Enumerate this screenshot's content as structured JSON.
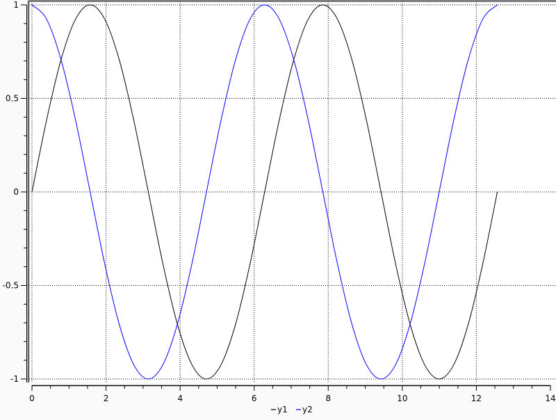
{
  "chart_data": {
    "type": "line",
    "title": "",
    "xlabel": "",
    "ylabel": "",
    "xlim": [
      0,
      14
    ],
    "ylim": [
      -1,
      1
    ],
    "grid": true,
    "legend_placement": "bottom-center",
    "x_ticks": [
      "0",
      "2",
      "4",
      "6",
      "8",
      "10",
      "12",
      "14"
    ],
    "y_ticks": [
      "-1",
      "-0.5",
      "0",
      "0.5",
      "1"
    ],
    "x": [
      0,
      0.393,
      0.785,
      1.178,
      1.571,
      1.963,
      2.356,
      2.749,
      3.142,
      3.534,
      3.927,
      4.32,
      4.712,
      5.105,
      5.498,
      5.89,
      6.283,
      6.676,
      7.069,
      7.461,
      7.854,
      8.247,
      8.639,
      9.032,
      9.425,
      9.817,
      10.21,
      10.603,
      10.996,
      11.388,
      11.781,
      12.174,
      12.566
    ],
    "series": [
      {
        "name": "y1",
        "color": "#000000",
        "values": [
          0,
          0.383,
          0.707,
          0.924,
          1,
          0.924,
          0.707,
          0.383,
          0,
          -0.383,
          -0.707,
          -0.924,
          -1,
          -0.924,
          -0.707,
          -0.383,
          0,
          0.383,
          0.707,
          0.924,
          1,
          0.924,
          0.707,
          0.383,
          0,
          -0.383,
          -0.707,
          -0.924,
          -1,
          -0.924,
          -0.707,
          -0.383,
          0
        ]
      },
      {
        "name": "y2",
        "color": "#0000ff",
        "values": [
          1,
          0.924,
          0.707,
          0.383,
          0,
          -0.383,
          -0.707,
          -0.924,
          -1,
          -0.924,
          -0.707,
          -0.383,
          0,
          0.383,
          0.707,
          0.924,
          1,
          0.924,
          0.707,
          0.383,
          0,
          -0.383,
          -0.707,
          -0.924,
          -1,
          -0.924,
          -0.707,
          -0.383,
          0,
          0.383,
          0.707,
          0.924,
          1
        ]
      }
    ]
  }
}
